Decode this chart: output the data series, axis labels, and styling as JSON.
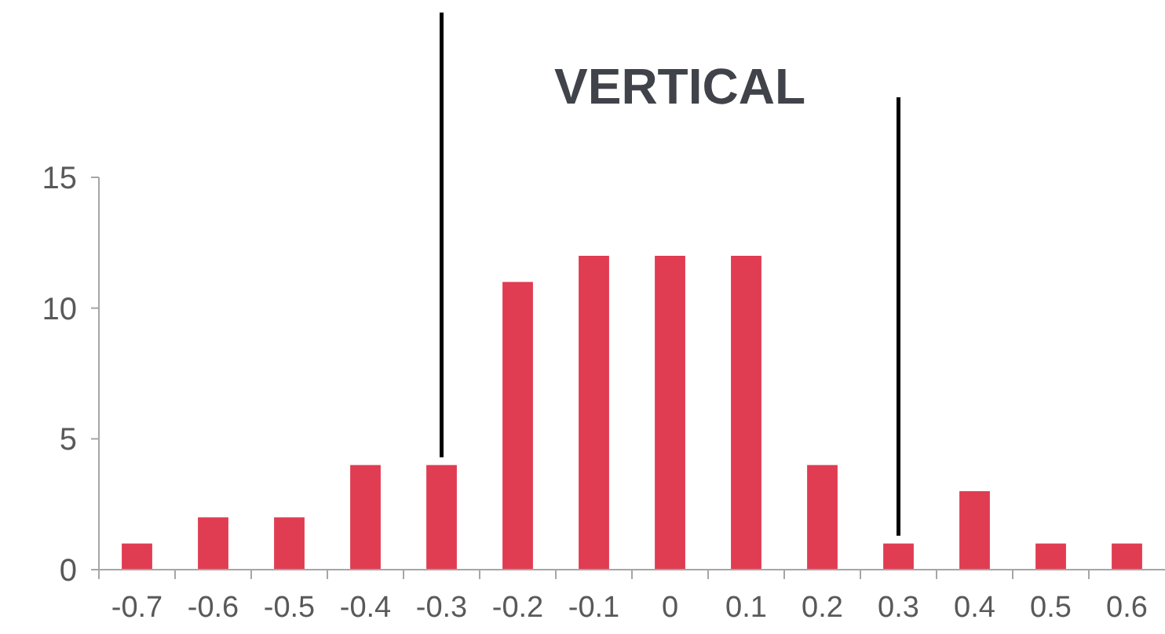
{
  "chart_data": {
    "type": "bar",
    "title": "VERTICAL",
    "categories": [
      "-0.7",
      "-0.6",
      "-0.5",
      "-0.4",
      "-0.3",
      "-0.2",
      "-0.1",
      "0",
      "0.1",
      "0.2",
      "0.3",
      "0.4",
      "0.5",
      "0.6"
    ],
    "values": [
      1,
      2,
      2,
      4,
      4,
      11,
      12,
      12,
      12,
      4,
      1,
      3,
      1,
      1
    ],
    "color": "#e03c52",
    "ylim": [
      0,
      15
    ],
    "yticks": [
      0,
      5,
      10,
      15
    ],
    "grid": false,
    "ref_lines": [
      {
        "axis": "x",
        "value": "-0.3",
        "color": "#000000"
      },
      {
        "axis": "x",
        "value": "0.3",
        "color": "#000000"
      }
    ]
  }
}
